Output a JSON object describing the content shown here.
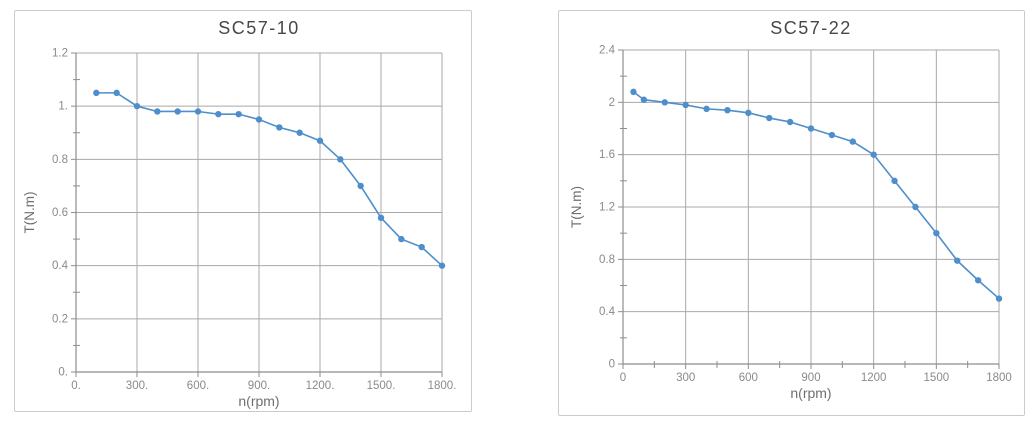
{
  "colors": {
    "line": "#4e8fcb",
    "marker": "#4e8fcb",
    "grid": "#a8a8a8",
    "axis": "#8e8e8e",
    "tick_label": "#8a8a8a",
    "axis_title": "#6f6f6f",
    "title": "#474747",
    "panel_border": "#cbcbcb",
    "background": "#ffffff"
  },
  "chart_data": [
    {
      "type": "line",
      "title": "SC57-10",
      "xlabel": "n(rpm)",
      "ylabel": "T(N.m)",
      "x": [
        100,
        200,
        300,
        400,
        500,
        600,
        700,
        800,
        900,
        1000,
        1100,
        1200,
        1300,
        1400,
        1500,
        1600,
        1700,
        1800
      ],
      "values": [
        1.05,
        1.05,
        1.0,
        0.98,
        0.98,
        0.98,
        0.97,
        0.97,
        0.95,
        0.92,
        0.9,
        0.87,
        0.8,
        0.7,
        0.58,
        0.5,
        0.47,
        0.4
      ],
      "xlim": [
        0,
        1800
      ],
      "ylim": [
        0,
        1.2
      ],
      "x_major_step": 300,
      "x_minor_step": null,
      "y_major_step": 0.2,
      "y_minor_step": 0.1,
      "x_tick_labels": [
        "0.",
        "300.",
        "600.",
        "900.",
        "1200.",
        "1500.",
        "1800."
      ],
      "y_tick_labels": [
        "0.",
        "0.2",
        "0.4",
        "0.6",
        "0.8",
        "1.",
        "1.2"
      ],
      "grid": true,
      "legend": false,
      "marker": "circle"
    },
    {
      "type": "line",
      "title": "SC57-22",
      "xlabel": "n(rpm)",
      "ylabel": "T(N.m)",
      "x": [
        50,
        100,
        200,
        300,
        400,
        500,
        600,
        700,
        800,
        900,
        1000,
        1100,
        1200,
        1300,
        1400,
        1500,
        1600,
        1700,
        1800
      ],
      "values": [
        2.08,
        2.02,
        2.0,
        1.98,
        1.95,
        1.94,
        1.92,
        1.88,
        1.85,
        1.8,
        1.75,
        1.7,
        1.6,
        1.4,
        1.2,
        1.0,
        0.79,
        0.64,
        0.5
      ],
      "xlim": [
        0,
        1800
      ],
      "ylim": [
        0,
        2.4
      ],
      "x_major_step": 300,
      "x_minor_step": 150,
      "y_major_step": 0.4,
      "y_minor_step": 0.2,
      "x_tick_labels": [
        "0",
        "300",
        "600",
        "900",
        "1200",
        "1500",
        "1800"
      ],
      "y_tick_labels": [
        "0",
        "0.4",
        "0.8",
        "1.2",
        "1.6",
        "2",
        "2.4"
      ],
      "grid": true,
      "legend": false,
      "marker": "circle"
    }
  ]
}
